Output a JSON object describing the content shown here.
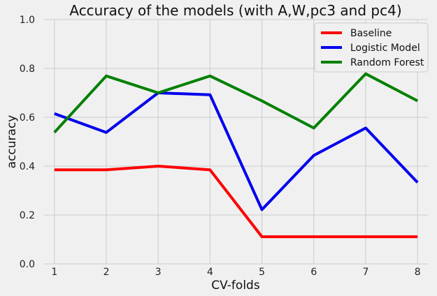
{
  "chart_data": {
    "type": "line",
    "title": "Accuracy of the models (with A,W,pc3 and pc4)",
    "xlabel": "CV-folds",
    "ylabel": "accuracy",
    "x": [
      1,
      2,
      3,
      4,
      5,
      6,
      7,
      8
    ],
    "xticks": [
      "1",
      "2",
      "3",
      "4",
      "5",
      "6",
      "7",
      "8"
    ],
    "yticks": [
      "0.0",
      "0.2",
      "0.4",
      "0.6",
      "0.8",
      "1.0"
    ],
    "xlim": [
      0.8,
      8.2
    ],
    "ylim": [
      0,
      1
    ],
    "grid": true,
    "legend_position": "top-right",
    "series": [
      {
        "name": "Baseline",
        "color": "#ff0000",
        "values": [
          0.385,
          0.385,
          0.4,
          0.385,
          0.111,
          0.111,
          0.111,
          0.111
        ]
      },
      {
        "name": "Logistic Model",
        "color": "#0000ee",
        "values": [
          0.615,
          0.538,
          0.7,
          0.692,
          0.222,
          0.444,
          0.556,
          0.333
        ]
      },
      {
        "name": "Random Forest",
        "color": "#008000",
        "values": [
          0.538,
          0.769,
          0.7,
          0.769,
          0.667,
          0.556,
          0.778,
          0.667
        ]
      }
    ]
  }
}
